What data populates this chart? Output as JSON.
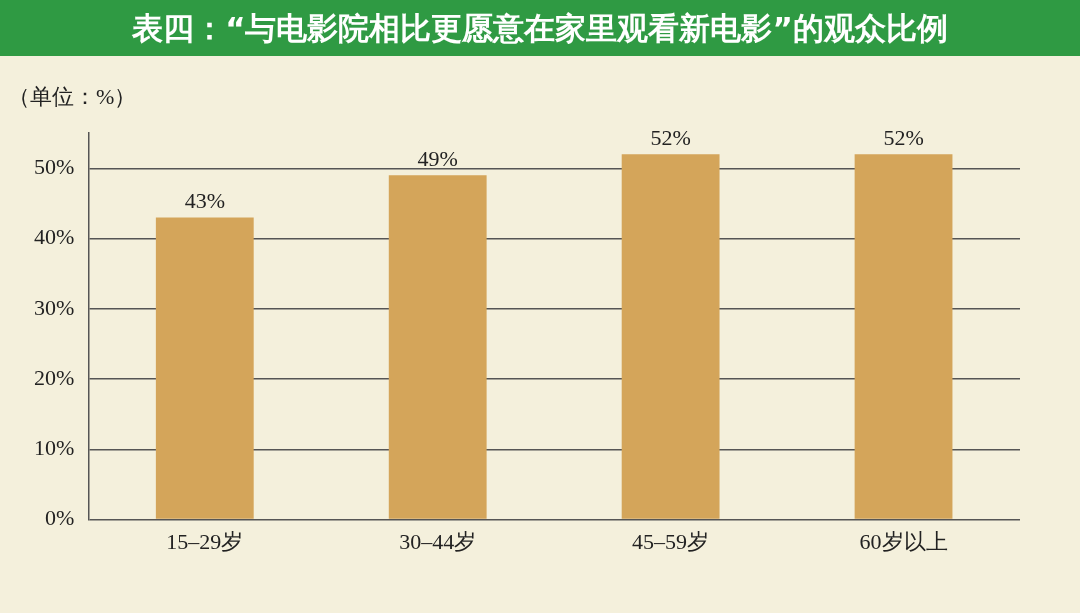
{
  "chart_data": {
    "type": "bar",
    "title": "表四：“与电影院相比更愿意在家里观看新电影”的观众比例",
    "ylabel": "（单位：%）",
    "categories": [
      "15–29岁",
      "30–44岁",
      "45–59岁",
      "60岁以上"
    ],
    "values": [
      43,
      49,
      52,
      52
    ],
    "value_labels": [
      "43%",
      "49%",
      "52%",
      "52%"
    ],
    "color": "#d4a55a",
    "ylim": [
      0,
      55
    ],
    "yticks": [
      {
        "value": 0,
        "label": "0%"
      },
      {
        "value": 10,
        "label": "10%"
      },
      {
        "value": 20,
        "label": "20%"
      },
      {
        "value": 30,
        "label": "30%"
      },
      {
        "value": 40,
        "label": "40%"
      },
      {
        "value": 50,
        "label": "50%"
      }
    ],
    "grid": "y",
    "legend": false
  }
}
